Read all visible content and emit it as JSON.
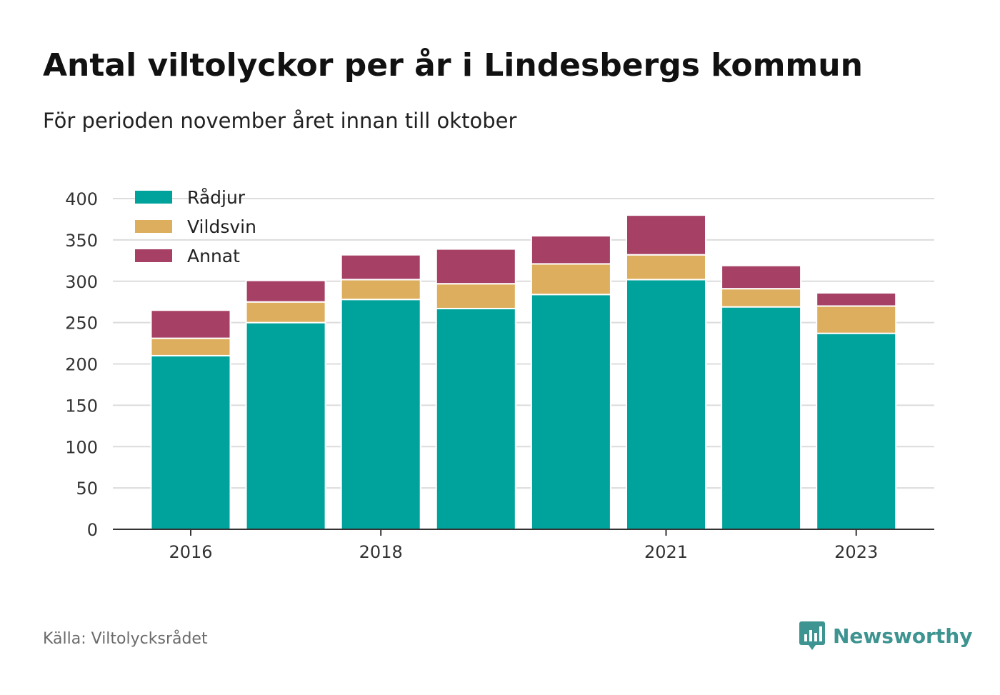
{
  "title": "Antal viltolyckor per år i Lindesbergs kommun",
  "subtitle": "För perioden november året innan till oktober",
  "source": "Källa: Viltolycksrådet",
  "brand": "Newsworthy",
  "chart_data": {
    "type": "bar",
    "stacked": true,
    "title": "Antal viltolyckor per år i Lindesbergs kommun",
    "subtitle": "För perioden november året innan till oktober",
    "categories": [
      "2016",
      "2017",
      "2018",
      "2019",
      "2020",
      "2021",
      "2022",
      "2023"
    ],
    "x_tick_labels": [
      "2016",
      "2018",
      "2021",
      "2023"
    ],
    "series": [
      {
        "name": "Rådjur",
        "color": "#00a39b",
        "values": [
          210,
          250,
          278,
          267,
          284,
          302,
          269,
          237
        ]
      },
      {
        "name": "Vildsvin",
        "color": "#dcae5d",
        "values": [
          21,
          25,
          24,
          30,
          37,
          30,
          22,
          33
        ]
      },
      {
        "name": "Annat",
        "color": "#a64165",
        "values": [
          34,
          26,
          30,
          42,
          34,
          48,
          28,
          16
        ]
      }
    ],
    "ylim": [
      0,
      400
    ],
    "yticks": [
      0,
      50,
      100,
      150,
      200,
      250,
      300,
      350,
      400
    ],
    "grid": true,
    "legend_position": "top-left",
    "xlabel": "",
    "ylabel": ""
  }
}
